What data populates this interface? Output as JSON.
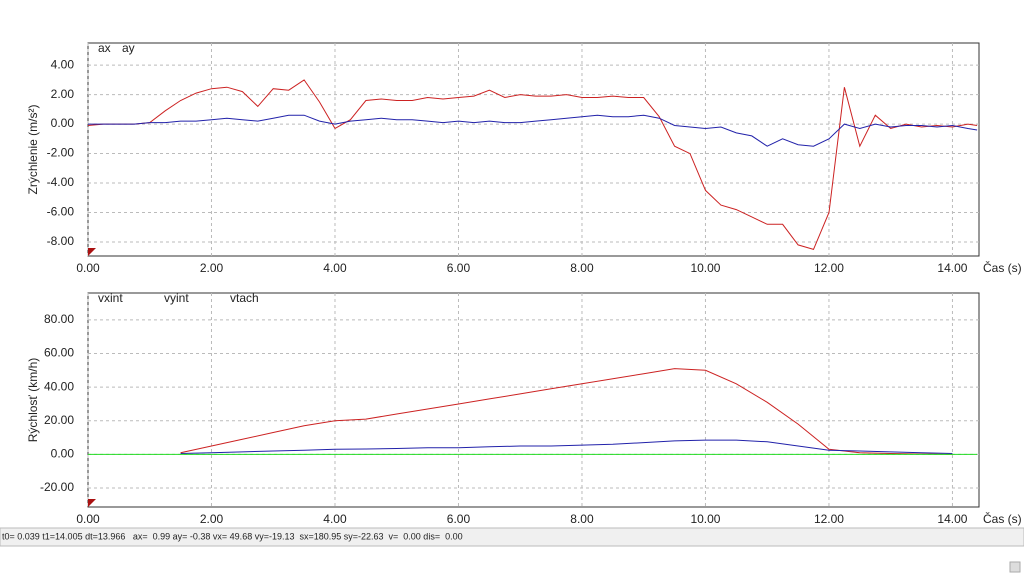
{
  "chart_data": [
    {
      "type": "line",
      "y_label": "Zrýchlenie  (m/s²)",
      "x_label": "Čas (s)",
      "x": [
        0,
        0.25,
        0.5,
        0.75,
        1,
        1.25,
        1.5,
        1.75,
        2,
        2.25,
        2.5,
        2.75,
        3,
        3.25,
        3.5,
        3.75,
        4,
        4.25,
        4.5,
        4.75,
        5,
        5.25,
        5.5,
        5.75,
        6,
        6.25,
        6.5,
        6.75,
        7,
        7.25,
        7.5,
        7.75,
        8,
        8.25,
        8.5,
        8.75,
        9,
        9.25,
        9.5,
        9.75,
        10,
        10.25,
        10.5,
        10.75,
        11,
        11.25,
        11.5,
        11.75,
        12,
        12.25,
        12.5,
        12.75,
        13,
        13.25,
        13.5,
        13.75,
        14,
        14.25,
        14.4
      ],
      "series": [
        {
          "name": "ax",
          "color": "#cc2222",
          "values": [
            -0.1,
            0,
            0,
            0,
            0.1,
            0.9,
            1.6,
            2.1,
            2.4,
            2.5,
            2.2,
            1.2,
            2.4,
            2.3,
            3.0,
            1.5,
            -0.3,
            0.3,
            1.6,
            1.7,
            1.6,
            1.6,
            1.8,
            1.7,
            1.8,
            1.9,
            2.3,
            1.8,
            2.0,
            1.9,
            1.9,
            2.0,
            1.8,
            1.8,
            1.9,
            1.8,
            1.8,
            0.5,
            -1.5,
            -2.0,
            -4.5,
            -5.5,
            -5.8,
            -6.3,
            -6.8,
            -6.8,
            -8.2,
            -8.5,
            -6.0,
            2.5,
            -1.5,
            0.6,
            -0.3,
            0,
            -0.2,
            -0.1,
            -0.2,
            0,
            -0.1
          ]
        },
        {
          "name": "ay",
          "color": "#2222aa",
          "values": [
            0,
            0,
            0,
            0,
            0.1,
            0.1,
            0.2,
            0.2,
            0.3,
            0.4,
            0.3,
            0.2,
            0.4,
            0.6,
            0.6,
            0.2,
            0,
            0.2,
            0.3,
            0.4,
            0.3,
            0.3,
            0.2,
            0.1,
            0.2,
            0.1,
            0.2,
            0.1,
            0.1,
            0.2,
            0.3,
            0.4,
            0.5,
            0.6,
            0.5,
            0.5,
            0.6,
            0.4,
            -0.1,
            -0.2,
            -0.3,
            -0.2,
            -0.6,
            -0.8,
            -1.5,
            -1.0,
            -1.4,
            -1.5,
            -1.0,
            0,
            -0.3,
            0,
            -0.2,
            -0.1,
            -0.1,
            -0.2,
            -0.1,
            -0.3,
            -0.4
          ]
        }
      ],
      "xlim": [
        0,
        14.43
      ],
      "ylim": [
        -8.95,
        5.5
      ],
      "xticks": [
        {
          "value": 0,
          "label": "0.00"
        },
        {
          "value": 2,
          "label": "2.00"
        },
        {
          "value": 4,
          "label": "4.00"
        },
        {
          "value": 6,
          "label": "6.00"
        },
        {
          "value": 8,
          "label": "8.00"
        },
        {
          "value": 10,
          "label": "10.00"
        },
        {
          "value": 12,
          "label": "12.00"
        },
        {
          "value": 14,
          "label": "14.00"
        }
      ],
      "yticks": [
        {
          "value": 4,
          "label": "4.00"
        },
        {
          "value": 2,
          "label": "2.00"
        },
        {
          "value": 0,
          "label": "0.00"
        },
        {
          "value": -2,
          "label": "-2.00"
        },
        {
          "value": -4,
          "label": "-4.00"
        },
        {
          "value": -6,
          "label": "-6.00"
        },
        {
          "value": -8,
          "label": "-8.00"
        }
      ],
      "grid": true
    },
    {
      "type": "line",
      "y_label": "Rýchlosť (km/h)",
      "x_label": "Čas (s)",
      "x": [
        0,
        0.5,
        1,
        1.5,
        2,
        2.5,
        3,
        3.5,
        4,
        4.5,
        5,
        5.5,
        6,
        6.5,
        7,
        7.5,
        8,
        8.5,
        9,
        9.5,
        10,
        10.5,
        11,
        11.5,
        12,
        12.5,
        13,
        13.5,
        14,
        14.4
      ],
      "series": [
        {
          "name": "vxint",
          "color": "#cc2222",
          "values": [
            null,
            null,
            null,
            1,
            5,
            9,
            13,
            17,
            20,
            21,
            24,
            27,
            30,
            33,
            36,
            39,
            42,
            45,
            48,
            51,
            50,
            42,
            31,
            18,
            3,
            1,
            0.5,
            0.2,
            0,
            null
          ]
        },
        {
          "name": "vyint",
          "color": "#2222aa",
          "values": [
            null,
            null,
            null,
            0.5,
            1,
            1.5,
            2,
            2.5,
            3,
            3.2,
            3.5,
            4,
            4,
            4.5,
            5,
            5,
            5.5,
            6,
            7,
            8,
            8.5,
            8.5,
            7.5,
            5,
            2.5,
            2,
            1.5,
            1,
            0.5,
            null
          ]
        },
        {
          "name": "vtach",
          "color": "#22dd22",
          "values": [
            0,
            0,
            0,
            0,
            0,
            0,
            0,
            0,
            0,
            0,
            0,
            0,
            0,
            0,
            0,
            0,
            0,
            0,
            0,
            0,
            0,
            0,
            0,
            0,
            0,
            0,
            0,
            0,
            0,
            0
          ]
        }
      ],
      "xlim": [
        0,
        14.43
      ],
      "ylim": [
        -31.3,
        96
      ],
      "xticks": [
        {
          "value": 0,
          "label": "0.00"
        },
        {
          "value": 2,
          "label": "2.00"
        },
        {
          "value": 4,
          "label": "4.00"
        },
        {
          "value": 6,
          "label": "6.00"
        },
        {
          "value": 8,
          "label": "8.00"
        },
        {
          "value": 10,
          "label": "10.00"
        },
        {
          "value": 12,
          "label": "12.00"
        },
        {
          "value": 14,
          "label": "14.00"
        }
      ],
      "yticks": [
        {
          "value": 80,
          "label": "80.00"
        },
        {
          "value": 60,
          "label": "60.00"
        },
        {
          "value": 40,
          "label": "40.00"
        },
        {
          "value": 20,
          "label": "20.00"
        },
        {
          "value": 0,
          "label": "0.00"
        },
        {
          "value": -20,
          "label": "-20.00"
        }
      ],
      "grid": true
    }
  ],
  "status_bar": "t0= 0.039 t1=14.005 dt=13.966   ax=  0.99 ay= -0.38 vx= 49.68 vy=-19.13  sx=180.95 sy=-22.63  v=  0.00 dis=  0.00"
}
